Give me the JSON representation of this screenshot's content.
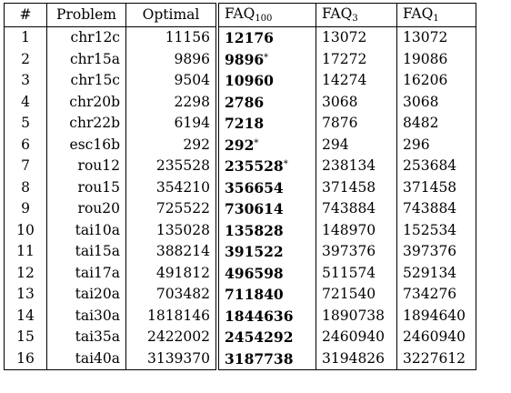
{
  "table": {
    "headers": {
      "index": "#",
      "problem": "Problem",
      "optimal": "Optimal",
      "faq100_base": "FAQ",
      "faq100_sub": "100",
      "faq3_base": "FAQ",
      "faq3_sub": "3",
      "faq1_base": "FAQ",
      "faq1_sub": "1"
    },
    "rows": [
      {
        "index": "1",
        "problem": "chr12c",
        "optimal": "11156",
        "faq100": "12176",
        "mark": "",
        "faq3": "13072",
        "faq1": "13072"
      },
      {
        "index": "2",
        "problem": "chr15a",
        "optimal": "9896",
        "faq100": "9896",
        "mark": "*",
        "faq3": "17272",
        "faq1": "19086"
      },
      {
        "index": "3",
        "problem": "chr15c",
        "optimal": "9504",
        "faq100": "10960",
        "mark": "",
        "faq3": "14274",
        "faq1": "16206"
      },
      {
        "index": "4",
        "problem": "chr20b",
        "optimal": "2298",
        "faq100": "2786",
        "mark": "",
        "faq3": "3068",
        "faq1": "3068"
      },
      {
        "index": "5",
        "problem": "chr22b",
        "optimal": "6194",
        "faq100": "7218",
        "mark": "",
        "faq3": "7876",
        "faq1": "8482"
      },
      {
        "index": "6",
        "problem": "esc16b",
        "optimal": "292",
        "faq100": "292",
        "mark": "*",
        "faq3": "294",
        "faq1": "296"
      },
      {
        "index": "7",
        "problem": "rou12",
        "optimal": "235528",
        "faq100": "235528",
        "mark": "*",
        "faq3": "238134",
        "faq1": "253684"
      },
      {
        "index": "8",
        "problem": "rou15",
        "optimal": "354210",
        "faq100": "356654",
        "mark": "",
        "faq3": "371458",
        "faq1": "371458"
      },
      {
        "index": "9",
        "problem": "rou20",
        "optimal": "725522",
        "faq100": "730614",
        "mark": "",
        "faq3": "743884",
        "faq1": "743884"
      },
      {
        "index": "10",
        "problem": "tai10a",
        "optimal": "135028",
        "faq100": "135828",
        "mark": "",
        "faq3": "148970",
        "faq1": "152534"
      },
      {
        "index": "11",
        "problem": "tai15a",
        "optimal": "388214",
        "faq100": "391522",
        "mark": "",
        "faq3": "397376",
        "faq1": "397376"
      },
      {
        "index": "12",
        "problem": "tai17a",
        "optimal": "491812",
        "faq100": "496598",
        "mark": "",
        "faq3": "511574",
        "faq1": "529134"
      },
      {
        "index": "13",
        "problem": "tai20a",
        "optimal": "703482",
        "faq100": "711840",
        "mark": "",
        "faq3": "721540",
        "faq1": "734276"
      },
      {
        "index": "14",
        "problem": "tai30a",
        "optimal": "1818146",
        "faq100": "1844636",
        "mark": "",
        "faq3": "1890738",
        "faq1": "1894640"
      },
      {
        "index": "15",
        "problem": "tai35a",
        "optimal": "2422002",
        "faq100": "2454292",
        "mark": "",
        "faq3": "2460940",
        "faq1": "2460940"
      },
      {
        "index": "16",
        "problem": "tai40a",
        "optimal": "3139370",
        "faq100": "3187738",
        "mark": "",
        "faq3": "3194826",
        "faq1": "3227612"
      }
    ]
  }
}
